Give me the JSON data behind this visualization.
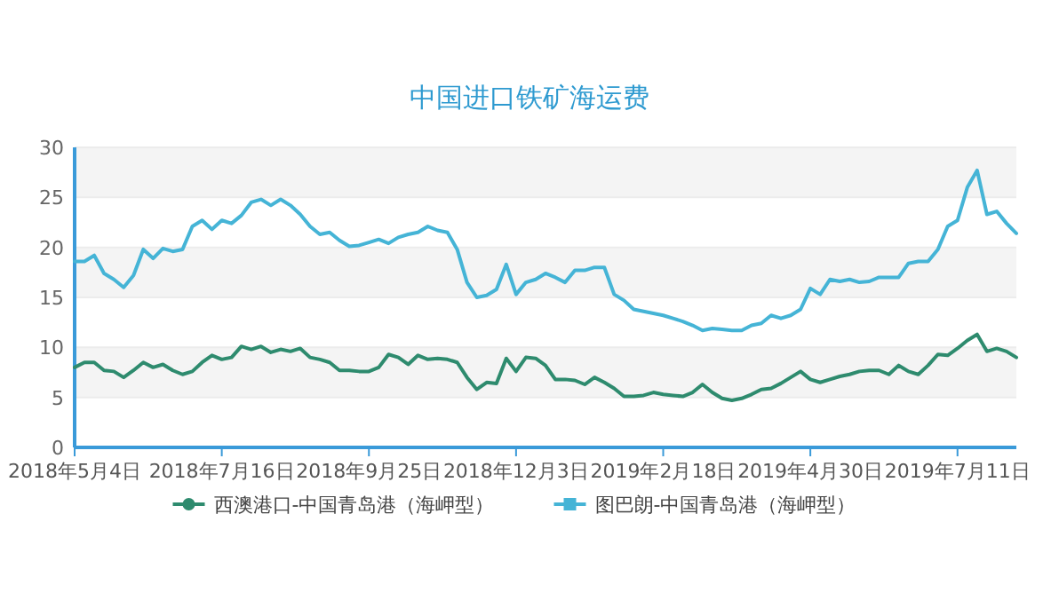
{
  "chart_data": {
    "type": "line",
    "title": "中国进口铁矿海运费",
    "categories": [
      "2018年5月4日",
      null,
      null,
      null,
      null,
      null,
      null,
      null,
      null,
      null,
      null,
      null,
      null,
      null,
      null,
      "2018年7月16日",
      null,
      null,
      null,
      null,
      null,
      null,
      null,
      null,
      null,
      null,
      null,
      null,
      null,
      null,
      "2018年9月25日",
      null,
      null,
      null,
      null,
      null,
      null,
      null,
      null,
      null,
      null,
      null,
      null,
      null,
      null,
      "2018年12月3日",
      null,
      null,
      null,
      null,
      null,
      null,
      null,
      null,
      null,
      null,
      null,
      null,
      null,
      null,
      "2019年2月18日",
      null,
      null,
      null,
      null,
      null,
      null,
      null,
      null,
      null,
      null,
      null,
      null,
      null,
      null,
      "2019年4月30日",
      null,
      null,
      null,
      null,
      null,
      null,
      null,
      null,
      null,
      null,
      null,
      null,
      null,
      null,
      "2019年7月11日",
      null,
      null,
      null,
      null,
      null,
      null
    ],
    "series": [
      {
        "name": "西澳港口-中国青岛港（海岬型）",
        "color": "#2e8b6e",
        "values": [
          8.0,
          8.5,
          8.5,
          7.7,
          7.6,
          7.0,
          7.7,
          8.5,
          8.0,
          8.3,
          7.7,
          7.3,
          7.6,
          8.5,
          9.2,
          8.8,
          9.0,
          10.1,
          9.8,
          10.1,
          9.5,
          9.8,
          9.6,
          9.9,
          9.0,
          8.8,
          8.5,
          7.7,
          7.7,
          7.6,
          7.6,
          8.0,
          9.3,
          9.0,
          8.3,
          9.2,
          8.8,
          8.9,
          8.8,
          8.5,
          7.0,
          5.8,
          6.5,
          6.4,
          8.9,
          7.6,
          9.0,
          8.9,
          8.2,
          6.8,
          6.8,
          6.7,
          6.3,
          7.0,
          6.5,
          5.9,
          5.1,
          5.1,
          5.2,
          5.5,
          5.3,
          5.2,
          5.1,
          5.5,
          6.3,
          5.5,
          4.9,
          4.7,
          4.9,
          5.3,
          5.8,
          5.9,
          6.4,
          7.0,
          7.6,
          6.8,
          6.5,
          6.8,
          7.1,
          7.3,
          7.6,
          7.7,
          7.7,
          7.3,
          8.2,
          7.6,
          7.3,
          8.2,
          9.3,
          9.2,
          9.9,
          10.7,
          11.3,
          9.6,
          9.9,
          9.6,
          9.0
        ]
      },
      {
        "name": "图巴朗-中国青岛港（海岬型）",
        "color": "#45b4d6",
        "values": [
          18.6,
          18.6,
          19.2,
          17.4,
          16.8,
          16.0,
          17.2,
          19.8,
          18.9,
          19.9,
          19.6,
          19.8,
          22.1,
          22.7,
          21.8,
          22.7,
          22.4,
          23.2,
          24.5,
          24.8,
          24.2,
          24.8,
          24.2,
          23.3,
          22.1,
          21.3,
          21.5,
          20.7,
          20.1,
          20.2,
          20.5,
          20.8,
          20.4,
          21.0,
          21.3,
          21.5,
          22.1,
          21.7,
          21.5,
          19.8,
          16.5,
          15.0,
          15.2,
          15.8,
          18.3,
          15.3,
          16.5,
          16.8,
          17.4,
          17.0,
          16.5,
          17.7,
          17.7,
          18.0,
          18.0,
          15.3,
          14.7,
          13.8,
          13.6,
          13.4,
          13.2,
          12.9,
          12.6,
          12.2,
          11.7,
          11.9,
          11.8,
          11.7,
          11.7,
          12.2,
          12.4,
          13.2,
          12.9,
          13.2,
          13.8,
          15.9,
          15.3,
          16.8,
          16.6,
          16.8,
          16.5,
          16.6,
          17.0,
          17.0,
          17.0,
          18.4,
          18.6,
          18.6,
          19.8,
          22.1,
          22.7,
          26.0,
          27.7,
          23.3,
          23.6,
          22.4,
          21.4
        ]
      }
    ],
    "ylim": [
      0,
      30
    ],
    "yticks": [
      0,
      5,
      10,
      15,
      20,
      25,
      30
    ],
    "grid": "y",
    "legend": "bottom"
  }
}
